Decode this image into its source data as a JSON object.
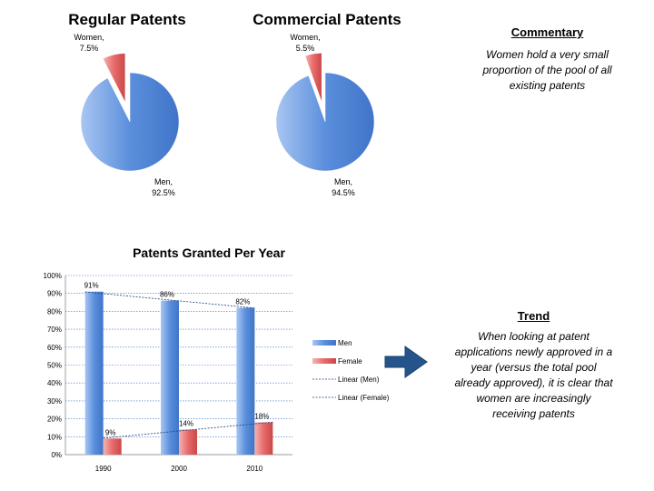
{
  "chart_data": [
    {
      "type": "pie",
      "title": "Regular Patents",
      "slices": [
        {
          "name": "Men",
          "value": 92.5,
          "label": "Men,",
          "value_label": "92.5%"
        },
        {
          "name": "Women",
          "value": 7.5,
          "label": "Women,",
          "value_label": "7.5%",
          "exploded": true
        }
      ]
    },
    {
      "type": "pie",
      "title": "Commercial Patents",
      "slices": [
        {
          "name": "Men",
          "value": 94.5,
          "label": "Men,",
          "value_label": "94.5%"
        },
        {
          "name": "Women",
          "value": 5.5,
          "label": "Women,",
          "value_label": "5.5%",
          "exploded": true
        }
      ]
    },
    {
      "type": "bar",
      "title": "Patents Granted Per Year",
      "categories": [
        "1990",
        "2000",
        "2010"
      ],
      "series": [
        {
          "name": "Men",
          "values": [
            91,
            86,
            82
          ],
          "labels": [
            "91%",
            "86%",
            "82%"
          ]
        },
        {
          "name": "Female",
          "values": [
            9,
            14,
            18
          ],
          "labels": [
            "9%",
            "14%",
            "18%"
          ]
        }
      ],
      "trendlines": [
        {
          "name": "Linear (Men)",
          "style": "dashed"
        },
        {
          "name": "Linear (Female)",
          "style": "dashed"
        }
      ],
      "ylim": [
        0,
        100
      ],
      "yticks": [
        "0%",
        "10%",
        "20%",
        "30%",
        "40%",
        "50%",
        "60%",
        "70%",
        "80%",
        "90%",
        "100%"
      ],
      "grid": true,
      "legend": "right"
    }
  ],
  "commentary": {
    "heading": "Commentary",
    "text": "Women hold a very small proportion of the pool of all existing patents"
  },
  "trend": {
    "heading": "Trend",
    "text": "When looking at patent applications newly approved in a year (versus the total pool already approved), it is clear that women are increasingly receiving patents"
  },
  "colors": {
    "men": "#5b8fdc",
    "women": "#e86a6a",
    "arrow": "#24548a"
  },
  "icons": {
    "arrow": "arrow-right-icon"
  }
}
